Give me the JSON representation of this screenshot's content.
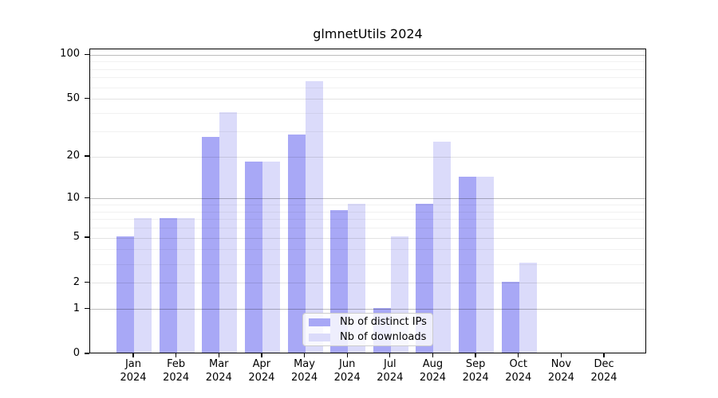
{
  "chart_data": {
    "type": "bar",
    "title": "glmnetUtils 2024",
    "x_categories": [
      "Jan",
      "Feb",
      "Mar",
      "Apr",
      "May",
      "Jun",
      "Jul",
      "Aug",
      "Sep",
      "Oct",
      "Nov",
      "Dec"
    ],
    "x_year": "2024",
    "series": [
      {
        "name": "Nb of distinct IPs",
        "color": "#a8a8f6",
        "values": [
          5,
          7,
          27,
          18,
          28,
          8,
          1,
          9,
          14,
          2,
          0,
          0
        ]
      },
      {
        "name": "Nb of downloads",
        "color": "#dbdbfa",
        "values": [
          7,
          7,
          40,
          18,
          65,
          9,
          5,
          25,
          14,
          3,
          0,
          0
        ]
      }
    ],
    "yticks": [
      0,
      1,
      2,
      5,
      10,
      20,
      50,
      100
    ],
    "ylim": [
      0,
      110
    ],
    "yscale": "log10(1+y)",
    "grid": {
      "decade_lines": [
        1,
        10,
        100
      ],
      "major_lines": [
        2,
        5,
        20,
        50
      ],
      "minor_lines": [
        3,
        4,
        6,
        7,
        8,
        9,
        30,
        40,
        60,
        70,
        80,
        90
      ],
      "color_decade": "rgba(0,0,0,0.26)",
      "color_major": "rgba(0,0,0,0.11)",
      "color_minor": "rgba(0,0,0,0.055)"
    },
    "legend": {
      "position": "lower center"
    }
  },
  "colors": {
    "background": "#ffffff",
    "text": "#000000",
    "spine": "#000000"
  }
}
